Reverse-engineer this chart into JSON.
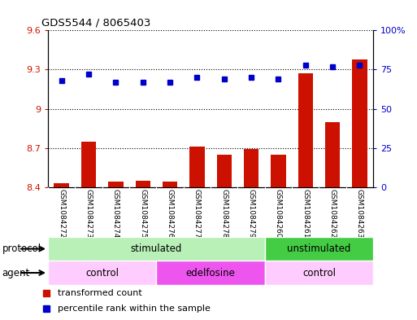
{
  "title": "GDS5544 / 8065403",
  "samples": [
    "GSM1084272",
    "GSM1084273",
    "GSM1084274",
    "GSM1084275",
    "GSM1084276",
    "GSM1084277",
    "GSM1084278",
    "GSM1084279",
    "GSM1084260",
    "GSM1084261",
    "GSM1084262",
    "GSM1084263"
  ],
  "bar_values": [
    8.43,
    8.75,
    8.44,
    8.45,
    8.44,
    8.71,
    8.65,
    8.69,
    8.65,
    9.27,
    8.9,
    9.38
  ],
  "dot_values": [
    68,
    72,
    67,
    67,
    67,
    70,
    69,
    70,
    69,
    78,
    77,
    78
  ],
  "ylim_left": [
    8.4,
    9.6
  ],
  "ylim_right": [
    0,
    100
  ],
  "yticks_left": [
    8.4,
    8.7,
    9.0,
    9.3,
    9.6
  ],
  "yticks_right": [
    0,
    25,
    50,
    75,
    100
  ],
  "ytick_labels_left": [
    "8.4",
    "8.7",
    "9",
    "9.3",
    "9.6"
  ],
  "ytick_labels_right": [
    "0",
    "25",
    "50",
    "75",
    "100%"
  ],
  "bar_color": "#cc1100",
  "dot_color": "#0000cc",
  "protocol_groups": [
    {
      "label": "stimulated",
      "start": 0,
      "end": 8,
      "color": "#b8f0b8"
    },
    {
      "label": "unstimulated",
      "start": 8,
      "end": 12,
      "color": "#44cc44"
    }
  ],
  "agent_groups": [
    {
      "label": "control",
      "start": 0,
      "end": 4,
      "color": "#ffccff"
    },
    {
      "label": "edelfosine",
      "start": 4,
      "end": 8,
      "color": "#ee55ee"
    },
    {
      "label": "control",
      "start": 8,
      "end": 12,
      "color": "#ffccff"
    }
  ],
  "legend_bar_label": "transformed count",
  "legend_dot_label": "percentile rank within the sample",
  "protocol_label": "protocol",
  "agent_label": "agent",
  "xlabel_bg": "#c8c8c8",
  "grid_color": "#000000"
}
